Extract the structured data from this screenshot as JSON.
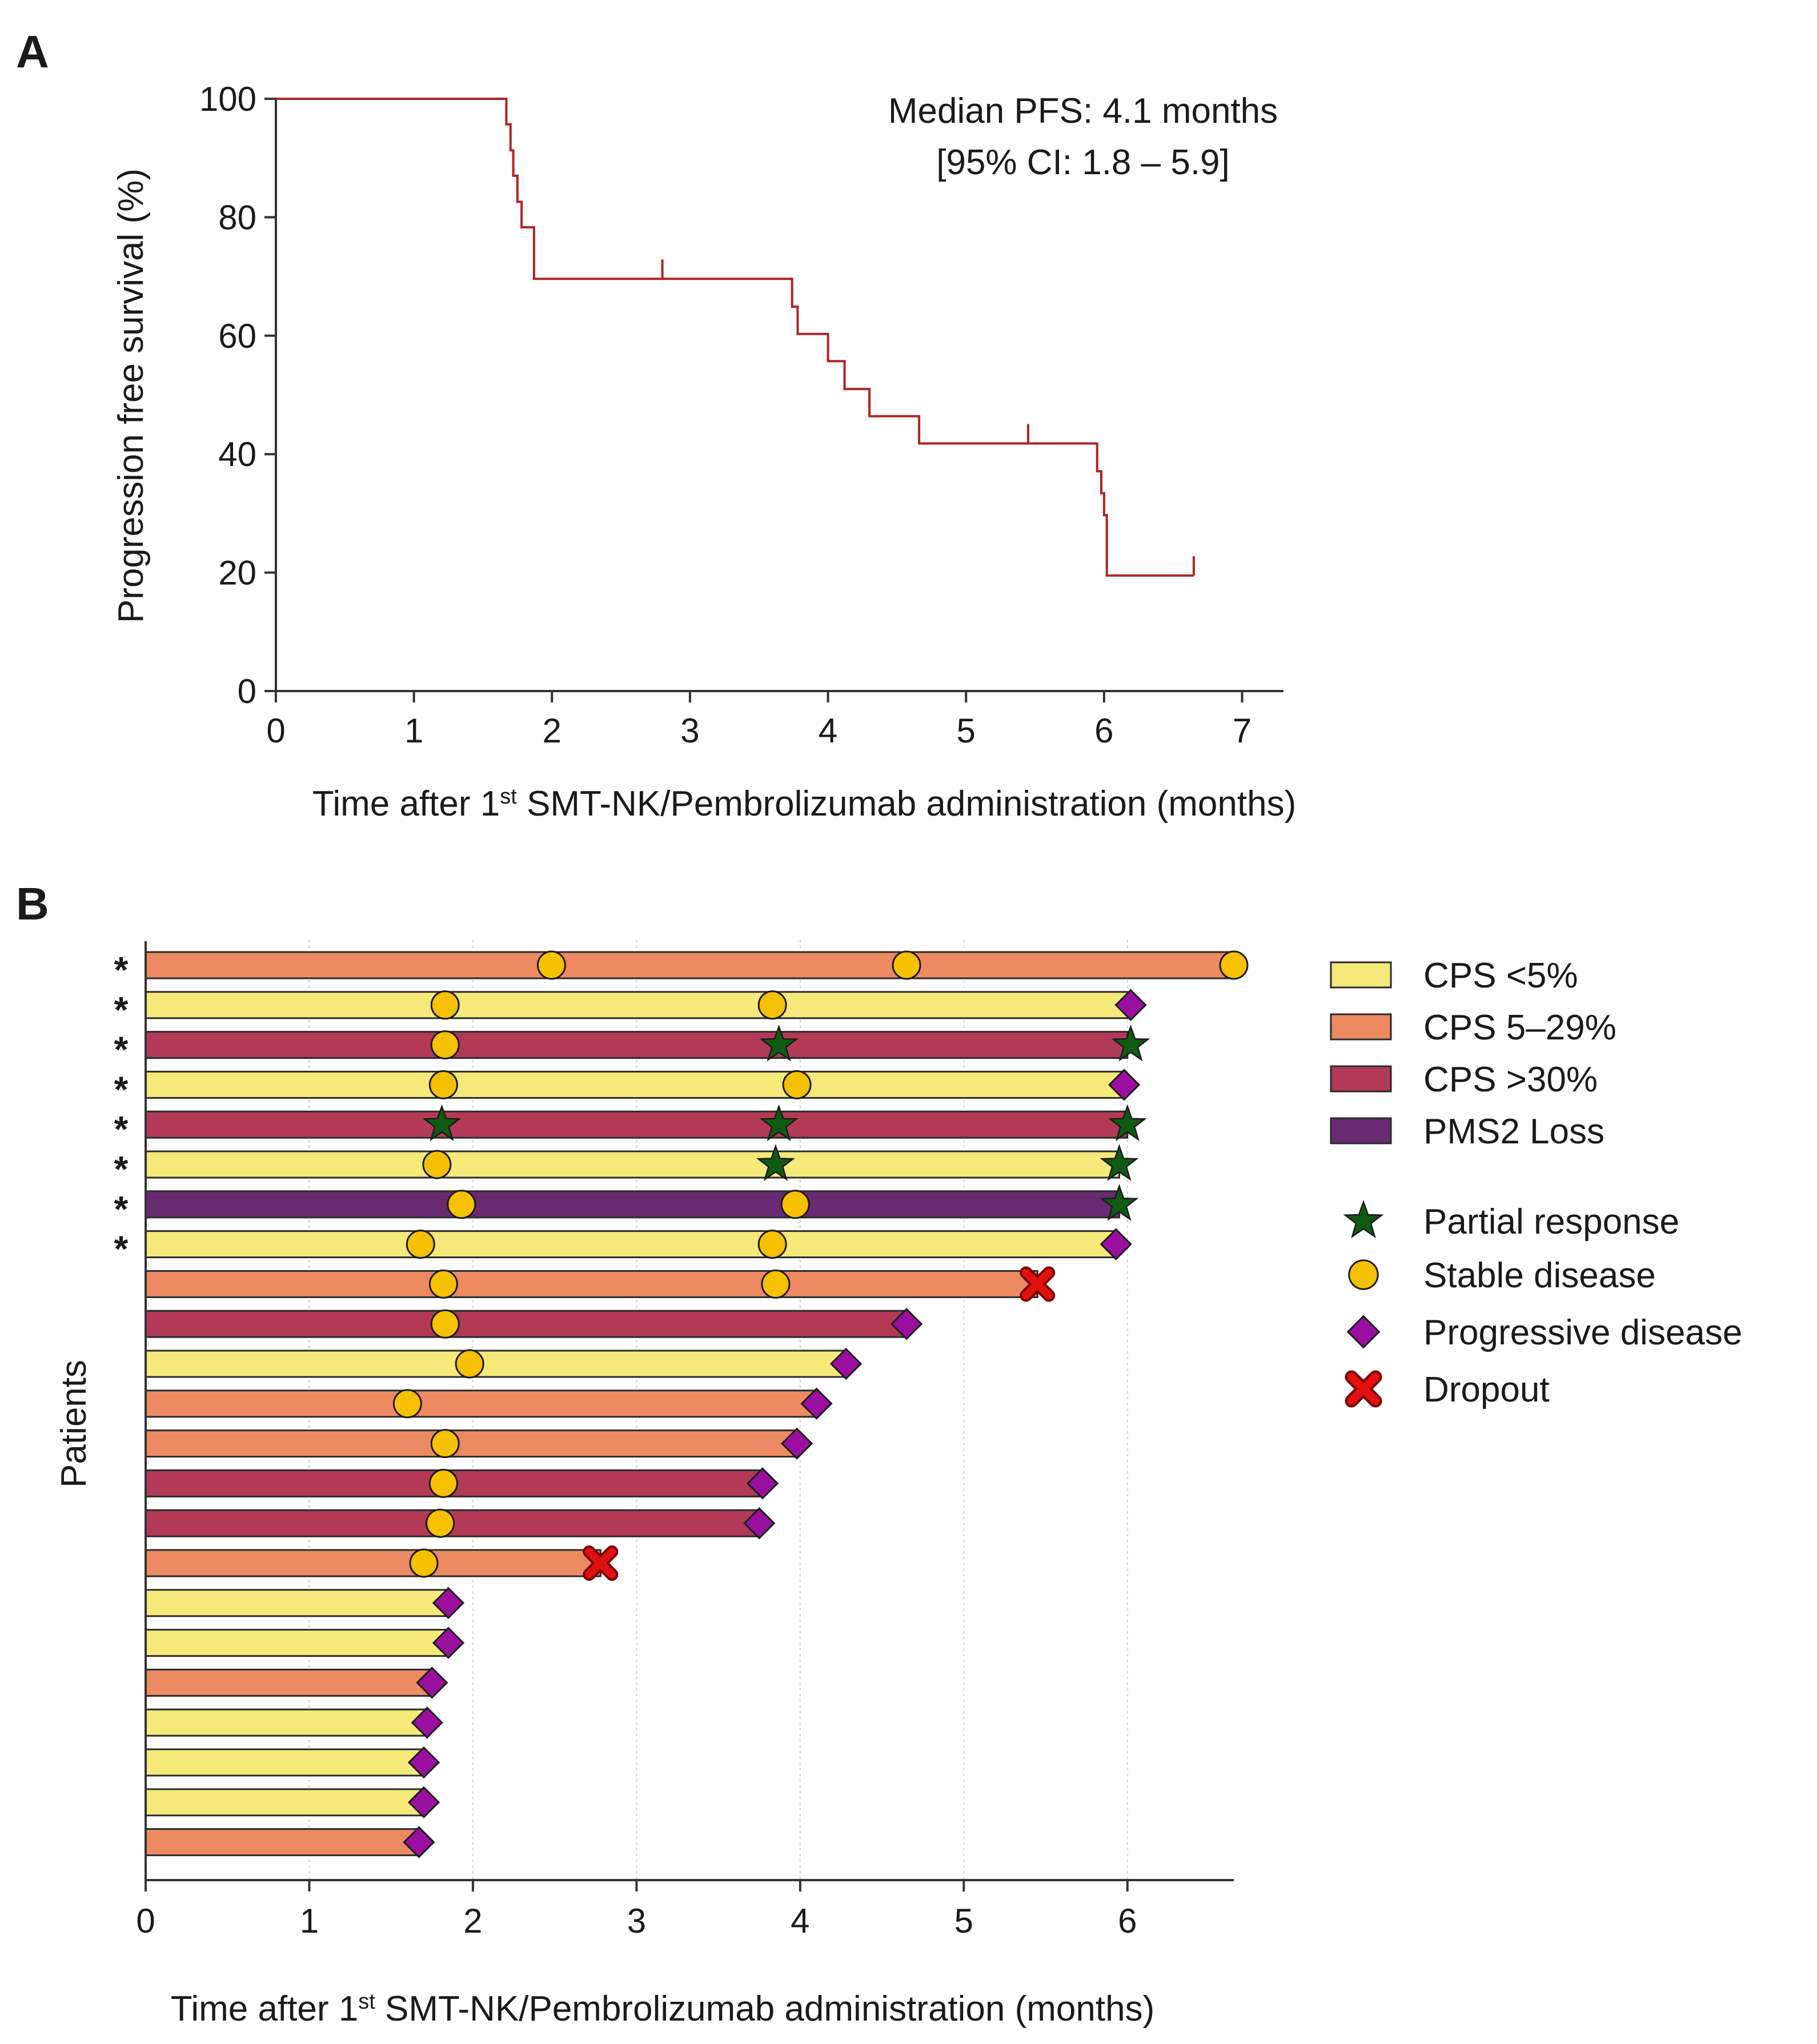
{
  "chart_data": [
    {
      "panel": "A",
      "type": "line",
      "subtype": "kaplan-meier step",
      "ylabel": "Progression free survival (%)",
      "xlabel_parts": [
        "Time after 1",
        "st",
        " SMT-NK/Pembrolizumab administration (months)"
      ],
      "xlim": [
        0,
        7.3
      ],
      "ylim": [
        0,
        100
      ],
      "xticks": [
        0,
        1,
        2,
        3,
        4,
        5,
        6,
        7
      ],
      "yticks": [
        0,
        20,
        40,
        60,
        80,
        100
      ],
      "line_color": "#b22222",
      "annotation": [
        "Median PFS: 4.1 months",
        "[95% CI: 1.8 – 5.9]"
      ],
      "steps": [
        {
          "x": 0,
          "y": 100
        },
        {
          "x": 1.67,
          "y": 100
        },
        {
          "x": 1.67,
          "y": 95.7
        },
        {
          "x": 1.7,
          "y": 95.7
        },
        {
          "x": 1.7,
          "y": 91.3
        },
        {
          "x": 1.72,
          "y": 91.3
        },
        {
          "x": 1.72,
          "y": 87
        },
        {
          "x": 1.75,
          "y": 87
        },
        {
          "x": 1.75,
          "y": 82.6
        },
        {
          "x": 1.78,
          "y": 82.6
        },
        {
          "x": 1.78,
          "y": 78.3
        },
        {
          "x": 1.87,
          "y": 78.3
        },
        {
          "x": 1.87,
          "y": 69.6
        },
        {
          "x": 3.74,
          "y": 69.6
        },
        {
          "x": 3.74,
          "y": 64.9
        },
        {
          "x": 3.78,
          "y": 64.9
        },
        {
          "x": 3.78,
          "y": 60.3
        },
        {
          "x": 4,
          "y": 60.3
        },
        {
          "x": 4,
          "y": 55.7
        },
        {
          "x": 4.12,
          "y": 55.7
        },
        {
          "x": 4.12,
          "y": 51
        },
        {
          "x": 4.3,
          "y": 51
        },
        {
          "x": 4.3,
          "y": 46.4
        },
        {
          "x": 4.66,
          "y": 46.4
        },
        {
          "x": 4.66,
          "y": 41.8
        },
        {
          "x": 5.95,
          "y": 41.8
        },
        {
          "x": 5.95,
          "y": 37.1
        },
        {
          "x": 5.98,
          "y": 37.1
        },
        {
          "x": 5.98,
          "y": 33.4
        },
        {
          "x": 6,
          "y": 33.4
        },
        {
          "x": 6,
          "y": 29.7
        },
        {
          "x": 6.02,
          "y": 29.7
        },
        {
          "x": 6.02,
          "y": 19.5
        },
        {
          "x": 6.65,
          "y": 19.5
        }
      ],
      "censored": [
        {
          "x": 2.8,
          "y": 69.6
        },
        {
          "x": 5.45,
          "y": 41.8
        },
        {
          "x": 6.65,
          "y": 19.5
        }
      ]
    },
    {
      "panel": "B",
      "type": "bar",
      "subtype": "swimmer plot",
      "ylabel": "Patients",
      "xlabel_parts": [
        "Time after 1",
        "st",
        " SMT-NK/Pembrolizumab administration (months)"
      ],
      "xlim": [
        0,
        6.65
      ],
      "xticks": [
        0,
        1,
        2,
        3,
        4,
        5,
        6
      ],
      "colors": {
        "CPS <5%": "#f5e97a",
        "CPS 5–29%": "#ee8a61",
        "CPS >30%": "#b23a57",
        "PMS2 Loss": "#6a2a72",
        "Partial response": "#0f5a12",
        "Stable disease": "#f5c100",
        "Progressive disease": "#9b0fa0",
        "Dropout": "#e11111"
      },
      "legend_groups": [
        "CPS <5%",
        "CPS 5–29%",
        "CPS >30%",
        "PMS2 Loss"
      ],
      "legend_groups_display": [
        "CPS  <5%",
        "CPS  5–29%",
        "CPS  >30%",
        "PMS2  Loss"
      ],
      "legend_events": [
        "Partial response",
        "Stable disease",
        "Progressive disease",
        "Dropout"
      ],
      "legend_event_shapes": [
        "star",
        "circle",
        "diamond",
        "cross"
      ],
      "asterisk_symbol": "*",
      "patients": [
        {
          "group": "CPS 5–29%",
          "end": 6.65,
          "asterisk": true,
          "events": [
            {
              "t": 2.48,
              "type": "Stable disease"
            },
            {
              "t": 4.65,
              "type": "Stable disease"
            },
            {
              "t": 6.65,
              "type": "Stable disease"
            }
          ]
        },
        {
          "group": "CPS <5%",
          "end": 6.0,
          "asterisk": true,
          "events": [
            {
              "t": 1.83,
              "type": "Stable disease"
            },
            {
              "t": 3.83,
              "type": "Stable disease"
            },
            {
              "t": 6.02,
              "type": "Progressive disease"
            }
          ]
        },
        {
          "group": "CPS >30%",
          "end": 6.0,
          "asterisk": true,
          "events": [
            {
              "t": 1.83,
              "type": "Stable disease"
            },
            {
              "t": 3.87,
              "type": "Partial response"
            },
            {
              "t": 6.02,
              "type": "Partial response"
            }
          ]
        },
        {
          "group": "CPS <5%",
          "end": 5.98,
          "asterisk": true,
          "events": [
            {
              "t": 1.82,
              "type": "Stable disease"
            },
            {
              "t": 3.98,
              "type": "Stable disease"
            },
            {
              "t": 5.98,
              "type": "Progressive disease"
            }
          ]
        },
        {
          "group": "CPS >30%",
          "end": 6.0,
          "asterisk": true,
          "events": [
            {
              "t": 1.81,
              "type": "Partial response"
            },
            {
              "t": 3.87,
              "type": "Partial response"
            },
            {
              "t": 6.0,
              "type": "Partial response"
            }
          ]
        },
        {
          "group": "CPS <5%",
          "end": 5.95,
          "asterisk": true,
          "events": [
            {
              "t": 1.78,
              "type": "Stable disease"
            },
            {
              "t": 3.85,
              "type": "Partial response"
            },
            {
              "t": 5.95,
              "type": "Partial response"
            }
          ]
        },
        {
          "group": "PMS2 Loss",
          "end": 5.95,
          "asterisk": true,
          "events": [
            {
              "t": 1.93,
              "type": "Stable disease"
            },
            {
              "t": 3.97,
              "type": "Stable disease"
            },
            {
              "t": 5.95,
              "type": "Partial response"
            }
          ]
        },
        {
          "group": "CPS <5%",
          "end": 5.93,
          "asterisk": true,
          "events": [
            {
              "t": 1.68,
              "type": "Stable disease"
            },
            {
              "t": 3.83,
              "type": "Stable disease"
            },
            {
              "t": 5.93,
              "type": "Progressive disease"
            }
          ]
        },
        {
          "group": "CPS 5–29%",
          "end": 5.45,
          "asterisk": false,
          "events": [
            {
              "t": 1.82,
              "type": "Stable disease"
            },
            {
              "t": 3.85,
              "type": "Stable disease"
            },
            {
              "t": 5.45,
              "type": "Dropout"
            }
          ]
        },
        {
          "group": "CPS >30%",
          "end": 4.65,
          "asterisk": false,
          "events": [
            {
              "t": 1.83,
              "type": "Stable disease"
            },
            {
              "t": 4.65,
              "type": "Progressive disease"
            }
          ]
        },
        {
          "group": "CPS <5%",
          "end": 4.28,
          "asterisk": false,
          "events": [
            {
              "t": 1.98,
              "type": "Stable disease"
            },
            {
              "t": 4.28,
              "type": "Progressive disease"
            }
          ]
        },
        {
          "group": "CPS 5–29%",
          "end": 4.1,
          "asterisk": false,
          "events": [
            {
              "t": 1.6,
              "type": "Stable disease"
            },
            {
              "t": 4.1,
              "type": "Progressive disease"
            }
          ]
        },
        {
          "group": "CPS 5–29%",
          "end": 3.98,
          "asterisk": false,
          "events": [
            {
              "t": 1.83,
              "type": "Stable disease"
            },
            {
              "t": 3.98,
              "type": "Progressive disease"
            }
          ]
        },
        {
          "group": "CPS >30%",
          "end": 3.77,
          "asterisk": false,
          "events": [
            {
              "t": 1.82,
              "type": "Stable disease"
            },
            {
              "t": 3.77,
              "type": "Progressive disease"
            }
          ]
        },
        {
          "group": "CPS >30%",
          "end": 3.75,
          "asterisk": false,
          "events": [
            {
              "t": 1.8,
              "type": "Stable disease"
            },
            {
              "t": 3.75,
              "type": "Progressive disease"
            }
          ]
        },
        {
          "group": "CPS 5–29%",
          "end": 2.78,
          "asterisk": false,
          "events": [
            {
              "t": 1.7,
              "type": "Stable disease"
            },
            {
              "t": 2.78,
              "type": "Dropout"
            }
          ]
        },
        {
          "group": "CPS <5%",
          "end": 1.85,
          "asterisk": false,
          "events": [
            {
              "t": 1.85,
              "type": "Progressive disease"
            }
          ]
        },
        {
          "group": "CPS <5%",
          "end": 1.85,
          "asterisk": false,
          "events": [
            {
              "t": 1.85,
              "type": "Progressive disease"
            }
          ]
        },
        {
          "group": "CPS 5–29%",
          "end": 1.75,
          "asterisk": false,
          "events": [
            {
              "t": 1.75,
              "type": "Progressive disease"
            }
          ]
        },
        {
          "group": "CPS <5%",
          "end": 1.72,
          "asterisk": false,
          "events": [
            {
              "t": 1.72,
              "type": "Progressive disease"
            }
          ]
        },
        {
          "group": "CPS <5%",
          "end": 1.7,
          "asterisk": false,
          "events": [
            {
              "t": 1.7,
              "type": "Progressive disease"
            }
          ]
        },
        {
          "group": "CPS <5%",
          "end": 1.7,
          "asterisk": false,
          "events": [
            {
              "t": 1.7,
              "type": "Progressive disease"
            }
          ]
        },
        {
          "group": "CPS 5–29%",
          "end": 1.67,
          "asterisk": false,
          "events": [
            {
              "t": 1.67,
              "type": "Progressive disease"
            }
          ]
        }
      ]
    }
  ]
}
